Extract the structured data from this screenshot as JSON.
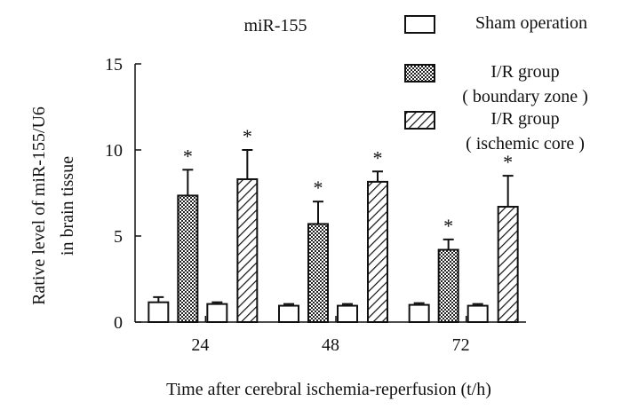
{
  "chart_data": {
    "type": "bar",
    "title": "miR-155",
    "ylabel_line1": "Rative level of miR-155/U6",
    "ylabel_line2": "in brain tissue",
    "xlabel": "Time after cerebral ischemia-reperfusion (t/h)",
    "categories": [
      "24",
      "48",
      "72"
    ],
    "ylim": [
      0,
      15
    ],
    "yticks": [
      "0",
      "5",
      "10",
      "15"
    ],
    "series": [
      {
        "name_lines": [
          "Sham operation"
        ],
        "pattern": "empty",
        "values": [
          1.15,
          0.95,
          1.0
        ],
        "errors": [
          0.3,
          0.1,
          0.1
        ]
      },
      {
        "name_lines": [
          "I/R group",
          "( boundary zone )"
        ],
        "pattern": "checker",
        "values": [
          7.35,
          5.7,
          4.2
        ],
        "errors": [
          1.5,
          1.3,
          0.6
        ]
      },
      {
        "name_lines": [
          "Sham operation"
        ],
        "pattern": "empty",
        "values": [
          1.05,
          0.95,
          0.95
        ],
        "errors": [
          0.1,
          0.1,
          0.1
        ]
      },
      {
        "name_lines": [
          "I/R group",
          "( ischemic core )"
        ],
        "pattern": "hatch",
        "values": [
          8.3,
          8.15,
          6.7
        ],
        "errors": [
          1.7,
          0.6,
          1.8
        ]
      }
    ],
    "significance_marker": "*",
    "significant": [
      [
        false,
        false,
        false
      ],
      [
        true,
        true,
        true
      ],
      [
        false,
        false,
        false
      ],
      [
        true,
        true,
        true
      ]
    ],
    "legend_position": "top-right"
  }
}
